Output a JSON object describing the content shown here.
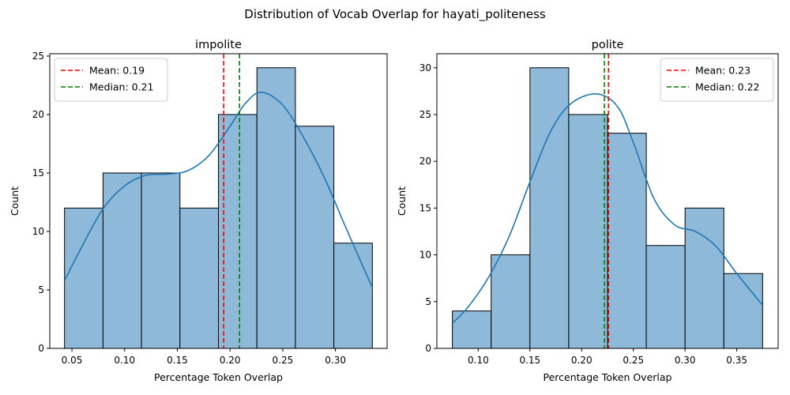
{
  "figure": {
    "suptitle": "Distribution of Vocab Overlap for hayati_politeness"
  },
  "chart_data": [
    {
      "type": "histogram",
      "title": "impolite",
      "xlabel": "Percentage Token Overlap",
      "ylabel": "Count",
      "xlim": [
        0.029,
        0.349
      ],
      "ylim": [
        0,
        25.2
      ],
      "xticks": [
        0.05,
        0.1,
        0.15,
        0.2,
        0.25,
        0.3
      ],
      "xtick_labels": [
        "0.05",
        "0.10",
        "0.15",
        "0.20",
        "0.25",
        "0.30"
      ],
      "yticks": [
        0,
        5,
        10,
        15,
        20,
        25
      ],
      "ytick_labels": [
        "0",
        "5",
        "10",
        "15",
        "20",
        "25"
      ],
      "bin_edges": [
        0.043,
        0.0795,
        0.116,
        0.1525,
        0.189,
        0.2255,
        0.262,
        0.2985,
        0.335
      ],
      "counts": [
        12,
        15,
        15,
        12,
        20,
        24,
        19,
        9
      ],
      "kde": {
        "x": [
          0.043,
          0.06,
          0.08,
          0.1,
          0.12,
          0.14,
          0.16,
          0.18,
          0.2,
          0.215,
          0.23,
          0.25,
          0.27,
          0.29,
          0.31,
          0.335
        ],
        "y": [
          5.8,
          8.8,
          12.0,
          13.9,
          14.8,
          14.9,
          15.2,
          16.5,
          19.0,
          21.0,
          21.9,
          20.8,
          18.0,
          14.5,
          10.3,
          5.2
        ]
      },
      "mean": 0.194,
      "median": 0.209,
      "legend": {
        "position": "top-left",
        "entries": [
          {
            "label": "Mean: 0.19",
            "color": "#ff0000"
          },
          {
            "label": "Median: 0.21",
            "color": "#008000"
          }
        ]
      }
    },
    {
      "type": "histogram",
      "title": "polite",
      "xlabel": "Percentage Token Overlap",
      "ylabel": "Count",
      "xlim": [
        0.06,
        0.39
      ],
      "ylim": [
        0,
        31.5
      ],
      "xticks": [
        0.1,
        0.15,
        0.2,
        0.25,
        0.3,
        0.35
      ],
      "xtick_labels": [
        "0.10",
        "0.15",
        "0.20",
        "0.25",
        "0.30",
        "0.35"
      ],
      "yticks": [
        0,
        5,
        10,
        15,
        20,
        25,
        30
      ],
      "ytick_labels": [
        "0",
        "5",
        "10",
        "15",
        "20",
        "25",
        "30"
      ],
      "bin_edges": [
        0.075,
        0.1125,
        0.15,
        0.1875,
        0.225,
        0.2625,
        0.3,
        0.3375,
        0.375
      ],
      "counts": [
        4,
        10,
        30,
        25,
        23,
        11,
        15,
        8
      ],
      "kde": {
        "x": [
          0.075,
          0.09,
          0.11,
          0.13,
          0.15,
          0.17,
          0.19,
          0.215,
          0.235,
          0.25,
          0.27,
          0.29,
          0.31,
          0.33,
          0.35,
          0.375
        ],
        "y": [
          2.7,
          4.4,
          7.6,
          12.0,
          17.8,
          23.2,
          26.2,
          27.2,
          25.8,
          22.0,
          16.0,
          13.2,
          12.5,
          10.9,
          8.0,
          4.6
        ]
      },
      "mean": 0.226,
      "median": 0.222,
      "legend": {
        "position": "top-right",
        "entries": [
          {
            "label": "Mean: 0.23",
            "color": "#ff0000"
          },
          {
            "label": "Median: 0.22",
            "color": "#008000"
          }
        ]
      }
    }
  ],
  "colors": {
    "bar_fill": "#8fb9d9",
    "bar_edge": "#000000",
    "kde_line": "#1f77b4",
    "mean_line": "#ff0000",
    "median_line": "#008000"
  }
}
